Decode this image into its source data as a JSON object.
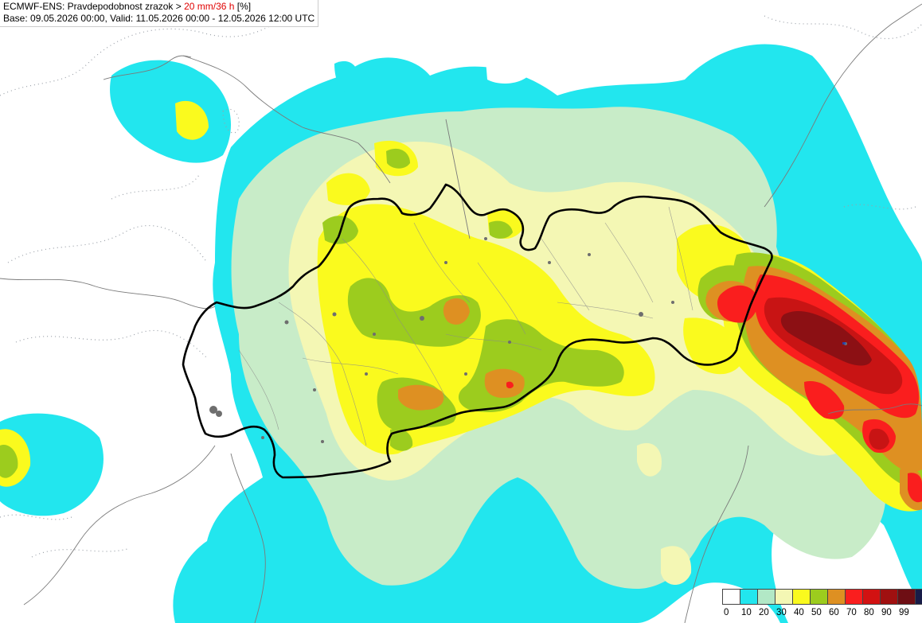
{
  "header": {
    "title_prefix": "ECMWF-ENS: Pravdepodobnost zrazok > ",
    "title_threshold": "20 mm/36 h",
    "title_suffix": " [%]",
    "subtitle": "Base: 09.05.2026 00:00, Valid: 11.05.2026 00:00 - 12.05.2026 12:00 UTC"
  },
  "legend": {
    "colors": [
      "#ffffff",
      "#22e6ee",
      "#b2e8c6",
      "#f4f7b4",
      "#fafa1e",
      "#9ccc1e",
      "#de9022",
      "#fa1e1e",
      "#d21212",
      "#a01010",
      "#6e0e14",
      "#181c48"
    ],
    "labels": [
      "0",
      "10",
      "20",
      "30",
      "40",
      "50",
      "60",
      "70",
      "80",
      "90",
      "99"
    ]
  },
  "map": {
    "region": "Slovakia",
    "palette": {
      "cyan": "#22e6ee",
      "light_green": "#c8ecc8",
      "pale_yellow": "#f4f7b4",
      "yellow": "#fafa1e",
      "olive": "#9ccc1e",
      "orange": "#de9022",
      "red": "#fa1e1e",
      "dark_red": "#c81414",
      "maroon": "#8c1014"
    }
  }
}
